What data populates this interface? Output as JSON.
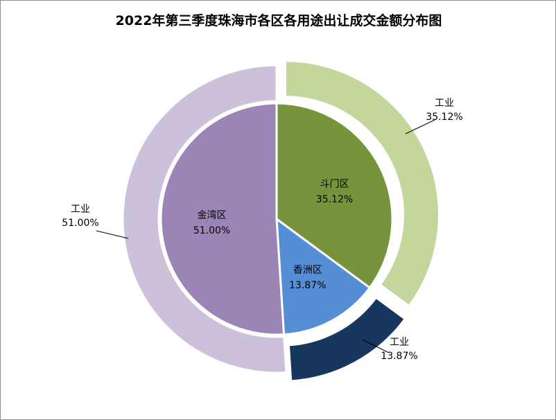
{
  "chart_data": {
    "type": "pie",
    "title": "2022年第三季度珠海市各区各用途出让成交金额分布图",
    "inner_ring": [
      {
        "category": "斗门区",
        "value": 35.12,
        "label": "35.12%",
        "color": "#77933c"
      },
      {
        "category": "香洲区",
        "value": 13.87,
        "label": "13.87%",
        "color": "#558ed5"
      },
      {
        "category": "金湾区",
        "value": 51.0,
        "label": "51.00%",
        "color": "#9b85b7"
      }
    ],
    "outer_ring": [
      {
        "category": "工业",
        "value": 35.12,
        "label": "35.12%",
        "color": "#c3d69b",
        "exploded": true
      },
      {
        "category": "工业",
        "value": 13.87,
        "label": "13.87%",
        "color": "#17375e",
        "exploded": true
      },
      {
        "category": "工业",
        "value": 51.0,
        "label": "51.00%",
        "color": "#ccc0da",
        "exploded": false
      }
    ],
    "legend": "none",
    "start_angle_deg": 0,
    "direction": "clockwise"
  }
}
